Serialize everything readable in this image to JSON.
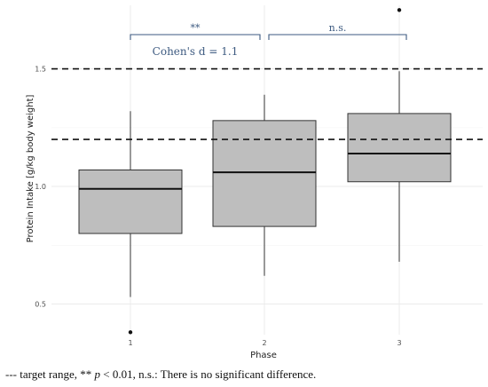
{
  "chart_data": {
    "type": "box",
    "xlabel": "Phase",
    "ylabel": "Protein Intake [g/kg body weight]",
    "categories": [
      "1",
      "2",
      "3"
    ],
    "y_ticks": [
      0.5,
      1.0,
      1.5
    ],
    "y_tick_labels": [
      "0.5",
      "1.0",
      "1.5"
    ],
    "ylim": [
      0.37,
      1.77
    ],
    "grid": true,
    "boxes": [
      {
        "category": "1",
        "whisker_low": 0.53,
        "q1": 0.8,
        "median": 0.99,
        "q3": 1.07,
        "whisker_high": 1.32,
        "outliers": [
          0.38
        ]
      },
      {
        "category": "2",
        "whisker_low": 0.62,
        "q1": 0.83,
        "median": 1.06,
        "q3": 1.28,
        "whisker_high": 1.39,
        "outliers": []
      },
      {
        "category": "3",
        "whisker_low": 0.68,
        "q1": 1.02,
        "median": 1.14,
        "q3": 1.31,
        "whisker_high": 1.49,
        "outliers": [
          1.75
        ]
      }
    ],
    "reference_lines": [
      1.5,
      1.2
    ],
    "comparisons": [
      {
        "from": "1",
        "to": "2",
        "label": "**"
      },
      {
        "from": "2",
        "to": "3",
        "label": "n.s."
      }
    ],
    "annotation": "Cohen's d = 1.1"
  },
  "caption": {
    "line_marker": "---",
    "text_a": " target range, ** ",
    "p_symbol": "p",
    "text_b": " < 0.01, n.s.: There is no significant difference."
  },
  "colors": {
    "box_fill": "#bebebe",
    "box_stroke": "#333333",
    "grid": "#ebebeb",
    "bracket": "#3d5a80"
  }
}
